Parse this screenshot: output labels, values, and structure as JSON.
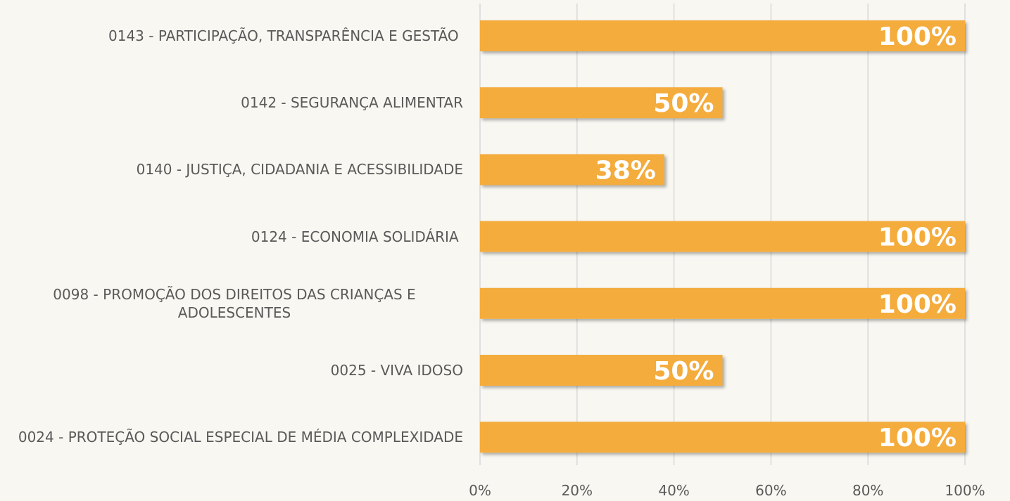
{
  "chart_data": {
    "type": "bar",
    "orientation": "horizontal",
    "categories": [
      "0143 - PARTICIPAÇÃO, TRANSPARÊNCIA E GESTÃO ",
      "0142 - SEGURANÇA ALIMENTAR",
      "0140 - JUSTIÇA, CIDADANIA E ACESSIBILIDADE",
      "0124 - ECONOMIA SOLIDÁRIA ",
      "0098 - PROMOÇÃO DOS DIREITOS DAS CRIANÇAS E ADOLESCENTES",
      "0025 - VIVA IDOSO",
      "0024 - PROTEÇÃO SOCIAL ESPECIAL DE MÉDIA COMPLEXIDADE"
    ],
    "values": [
      100,
      50,
      38,
      100,
      100,
      50,
      100
    ],
    "value_labels": [
      "100%",
      "50%",
      "38%",
      "100%",
      "100%",
      "50%",
      "100%"
    ],
    "color": "#f4ac3e",
    "xlim": [
      0,
      100
    ],
    "xticks": [
      {
        "value": 0,
        "label": "0%"
      },
      {
        "value": 20,
        "label": "20%"
      },
      {
        "value": 40,
        "label": "40%"
      },
      {
        "value": 60,
        "label": "60%"
      },
      {
        "value": 80,
        "label": "80%"
      },
      {
        "value": 100,
        "label": "100%"
      }
    ],
    "grid": true
  }
}
